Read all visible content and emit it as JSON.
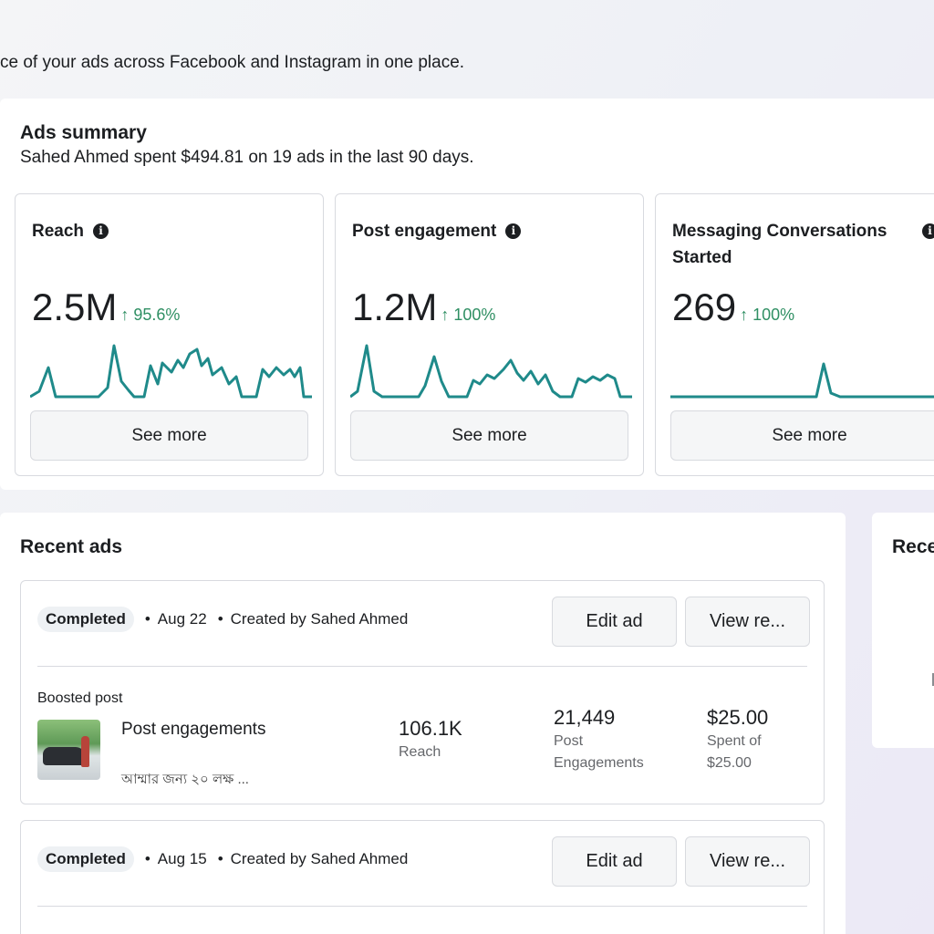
{
  "page": {
    "intro": "ce of your ads across Facebook and Instagram in one place."
  },
  "summary": {
    "title": "Ads summary",
    "subtitle": "Sahed Ahmed spent $494.81 on 19 ads in the last 90 days.",
    "cards": [
      {
        "title": "Reach",
        "value": "2.5M",
        "change": "↑ 95.6%",
        "see_more": "See more"
      },
      {
        "title": "Post engagement",
        "value": "1.2M",
        "change": "↑ 100%",
        "see_more": "See more"
      },
      {
        "title": "Messaging Conversations Started",
        "value": "269",
        "change": "↑ 100%",
        "see_more": "See more"
      }
    ],
    "info_icon_glyph": "i",
    "accent_color": "#1f8a8a",
    "change_color": "#2f8f63"
  },
  "recent": {
    "title": "Recent ads",
    "side_title": "Rece",
    "ads": [
      {
        "status": "Completed",
        "date": "Aug 22",
        "creator": "Created by Sahed Ahmed",
        "edit_label": "Edit ad",
        "view_label": "View re...",
        "type": "Boosted post",
        "name": "Post engagements",
        "caption": "আম্মার জন্য ২০ লক্ষ ...",
        "reach_value": "106.1K",
        "reach_label": "Reach",
        "engagements_value": "21,449",
        "engagements_label": "Post Engagements",
        "spent_value": "$25.00",
        "spent_label": "Spent of $25.00"
      },
      {
        "status": "Completed",
        "date": "Aug 15",
        "creator": "Created by Sahed Ahmed",
        "edit_label": "Edit ad",
        "view_label": "View re..."
      }
    ],
    "separator": "•"
  }
}
